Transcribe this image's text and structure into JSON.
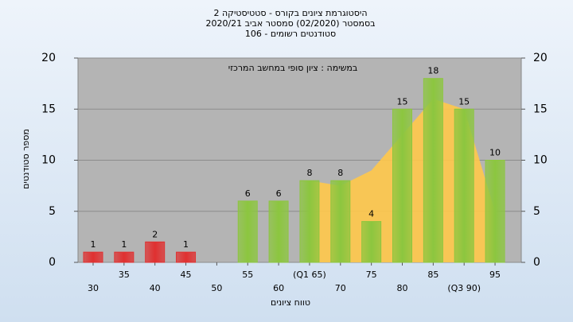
{
  "chart_data": {
    "type": "bar",
    "title": "היסטוגרמת ציונים בקורס - סטטיסטיקה 2",
    "subtitle": "בסמסטר (02/2020) סמסטר אביב 2020/21",
    "subtitle2": "סטודנטים רשומים - 106",
    "annotation": "במשימה : ציון סופי במחשב המרכזי",
    "y_label": "מספר סטודנטים",
    "x_label": "טווח ציונים",
    "categories": [
      "30",
      "35",
      "40",
      "45",
      "50",
      "55",
      "60",
      "(Q1 65)",
      "70",
      "75",
      "80",
      "85",
      "(Q3 90)",
      "95"
    ],
    "values": [
      1,
      1,
      2,
      1,
      null,
      6,
      6,
      8,
      8,
      4,
      15,
      18,
      15,
      10
    ],
    "colors": [
      "#e03030",
      "#e03030",
      "#e03030",
      "#e03030",
      "#e03030",
      "#8cc63f",
      "#8cc63f",
      "#8cc63f",
      "#8cc63f",
      "#8cc63f",
      "#8cc63f",
      "#8cc63f",
      "#8cc63f",
      "#8cc63f"
    ],
    "area": {
      "color": "#ffc84a",
      "values": [
        null,
        null,
        null,
        null,
        null,
        null,
        null,
        8,
        7.5,
        9,
        12.5,
        16,
        15,
        5
      ]
    },
    "ylim": [
      0,
      20
    ],
    "yticks": [
      0,
      5,
      10,
      15,
      20
    ],
    "y2lim": [
      0,
      20
    ],
    "y2ticks": [
      0,
      5,
      10,
      15,
      20
    ],
    "grid": true
  }
}
